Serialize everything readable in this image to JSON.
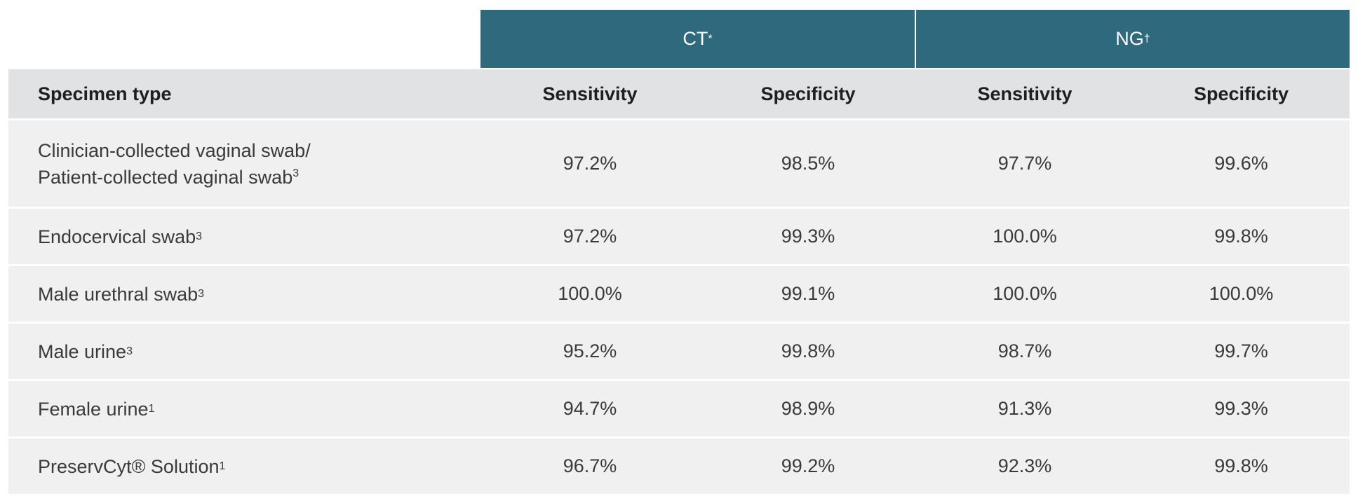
{
  "groups": {
    "ct": {
      "label": "CT",
      "mark": "*"
    },
    "ng": {
      "label": "NG",
      "mark": "†"
    }
  },
  "header": {
    "specimen_type": "Specimen type",
    "ct_sensitivity": "Sensitivity",
    "ct_specificity": "Specificity",
    "ng_sensitivity": "Sensitivity",
    "ng_specificity": "Specificity"
  },
  "rows": [
    {
      "specimen_line1": "Clinician-collected vaginal swab/",
      "specimen_line2": "Patient-collected vaginal swab",
      "ref": "3",
      "ct_sensitivity": "97.2%",
      "ct_specificity": "98.5%",
      "ng_sensitivity": "97.7%",
      "ng_specificity": "99.6%"
    },
    {
      "specimen": "Endocervical swab",
      "ref": "3",
      "ct_sensitivity": "97.2%",
      "ct_specificity": "99.3%",
      "ng_sensitivity": "100.0%",
      "ng_specificity": "99.8%"
    },
    {
      "specimen": "Male urethral swab",
      "ref": "3",
      "ct_sensitivity": "100.0%",
      "ct_specificity": "99.1%",
      "ng_sensitivity": "100.0%",
      "ng_specificity": "100.0%"
    },
    {
      "specimen": "Male urine",
      "ref": "3",
      "ct_sensitivity": "95.2%",
      "ct_specificity": "99.8%",
      "ng_sensitivity": "98.7%",
      "ng_specificity": "99.7%"
    },
    {
      "specimen": "Female urine",
      "ref": "1",
      "ct_sensitivity": "94.7%",
      "ct_specificity": "98.9%",
      "ng_sensitivity": "91.3%",
      "ng_specificity": "99.3%"
    },
    {
      "specimen": "PreservCyt® Solution",
      "ref": "1",
      "ct_sensitivity": "96.7%",
      "ct_specificity": "99.2%",
      "ng_sensitivity": "92.3%",
      "ng_specificity": "99.8%"
    }
  ]
}
